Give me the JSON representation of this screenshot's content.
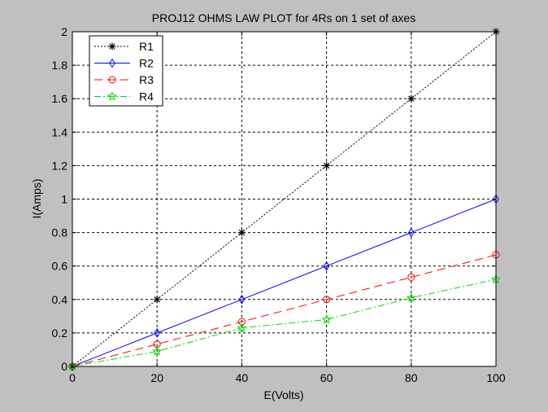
{
  "chart_data": {
    "type": "line",
    "title": "PROJ12 OHMS LAW PLOT for 4Rs on 1 set of axes",
    "xlabel": "E(Volts)",
    "ylabel": "I(Amps)",
    "xlim": [
      0,
      100
    ],
    "ylim": [
      0,
      2
    ],
    "xticks": [
      0,
      20,
      40,
      60,
      80,
      100
    ],
    "yticks": [
      0,
      0.2,
      0.4,
      0.6,
      0.8,
      1,
      1.2,
      1.4,
      1.6,
      1.8,
      2
    ],
    "x": [
      0,
      20,
      40,
      60,
      80,
      100
    ],
    "grid": true,
    "legend_position": "top-left",
    "series": [
      {
        "name": "R1",
        "values": [
          0,
          0.4,
          0.8,
          1.2,
          1.6,
          2.0
        ],
        "color": "#000000",
        "line_style": "dotted",
        "marker": "asterisk"
      },
      {
        "name": "R2",
        "values": [
          0,
          0.2,
          0.4,
          0.6,
          0.8,
          1.0
        ],
        "color": "#0000ff",
        "line_style": "solid",
        "marker": "diamond"
      },
      {
        "name": "R3",
        "values": [
          0,
          0.133,
          0.267,
          0.4,
          0.533,
          0.667
        ],
        "color": "#ff0000",
        "line_style": "dashed",
        "marker": "circle"
      },
      {
        "name": "R4",
        "values": [
          0,
          0.09,
          0.23,
          0.28,
          0.41,
          0.52
        ],
        "color": "#00dd00",
        "line_style": "dashdot",
        "marker": "star"
      }
    ]
  }
}
